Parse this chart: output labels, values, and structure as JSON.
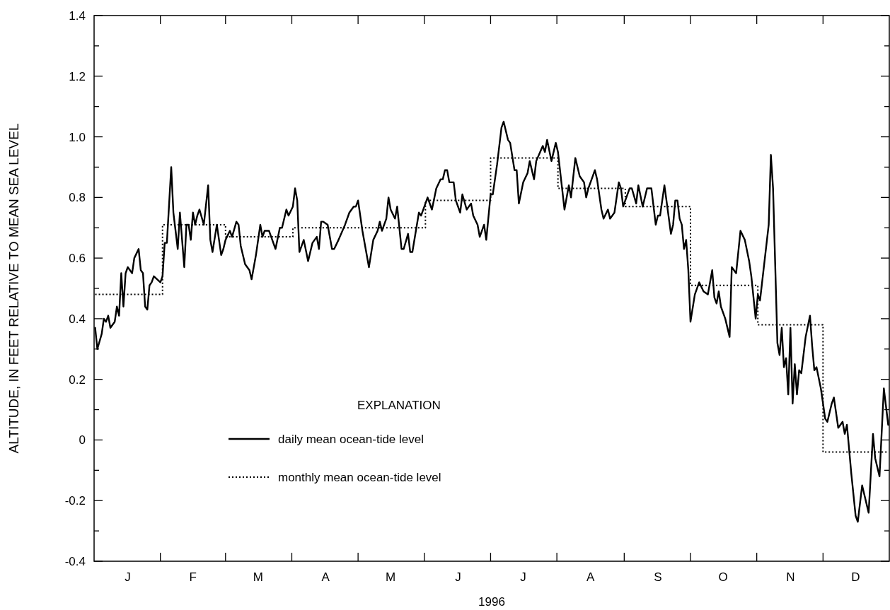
{
  "chart_data": {
    "type": "line",
    "xlabel": "1996",
    "ylabel": "ALTITUDE, IN FEET RELATIVE TO MEAN SEA LEVEL",
    "legend_title": "EXPLANATION",
    "legend": "bottom left",
    "grid": false,
    "ylim": [
      -0.4,
      1.4
    ],
    "yticks": [
      {
        "value": -0.4,
        "label": "-0.4"
      },
      {
        "value": -0.3,
        "label": null
      },
      {
        "value": -0.2,
        "label": "-0.2"
      },
      {
        "value": -0.1,
        "label": null
      },
      0,
      {
        "value": 0.1,
        "label": null
      },
      0.2,
      {
        "value": 0.3,
        "label": null
      },
      0.4,
      {
        "value": 0.5,
        "label": null
      },
      0.6,
      {
        "value": 0.7,
        "label": null
      },
      0.8,
      {
        "value": 0.9,
        "label": null
      },
      {
        "value": 1.0,
        "label": "1.0"
      },
      {
        "value": 1.1,
        "label": null
      },
      1.2,
      {
        "value": 1.3,
        "label": null
      },
      1.4
    ],
    "categories": [
      null,
      null,
      null,
      null,
      null,
      null,
      null,
      null,
      null,
      null,
      null,
      null,
      null,
      null,
      null,
      "J",
      null,
      null,
      null,
      null,
      null,
      null,
      null,
      null,
      null,
      null,
      null,
      null,
      null,
      null,
      null,
      null,
      null,
      null,
      null,
      null,
      null,
      null,
      null,
      null,
      null,
      null,
      null,
      null,
      null,
      "F",
      null,
      null,
      null,
      null,
      null,
      null,
      null,
      null,
      null,
      null,
      null,
      null,
      null,
      null,
      null,
      null,
      null,
      null,
      null,
      null,
      null,
      null,
      null,
      null,
      null,
      null,
      null,
      null,
      null,
      "M",
      null,
      null,
      null,
      null,
      null,
      null,
      null,
      null,
      null,
      null,
      null,
      null,
      null,
      null,
      null,
      null,
      null,
      null,
      null,
      null,
      null,
      null,
      null,
      null,
      null,
      null,
      null,
      null,
      null,
      null,
      "A",
      null,
      null,
      null,
      null,
      null,
      null,
      null,
      null,
      null,
      null,
      null,
      null,
      null,
      null,
      null,
      null,
      null,
      null,
      null,
      null,
      null,
      null,
      null,
      null,
      null,
      null,
      null,
      null,
      null,
      "M",
      null,
      null,
      null,
      null,
      null,
      null,
      null,
      null,
      null,
      null,
      null,
      null,
      null,
      null,
      null,
      null,
      null,
      null,
      null,
      null,
      null,
      null,
      null,
      null,
      null,
      null,
      null,
      null,
      null,
      null,
      "J",
      null,
      null,
      null,
      null,
      null,
      null,
      null,
      null,
      null,
      null,
      null,
      null,
      null,
      null,
      null,
      null,
      null,
      null,
      null,
      null,
      null,
      null,
      null,
      null,
      null,
      null,
      null,
      null,
      null,
      "J",
      null,
      null,
      null,
      null,
      null,
      null,
      null,
      null,
      null,
      null,
      null,
      null,
      null,
      null,
      null,
      null,
      null,
      null,
      null,
      null,
      null,
      null,
      null,
      null,
      null,
      null,
      null,
      null,
      null,
      null,
      "A",
      null,
      null,
      null,
      null,
      null,
      null,
      null,
      null,
      null,
      null,
      null,
      null,
      null,
      null,
      null,
      null,
      null,
      null,
      null,
      null,
      null,
      null,
      null,
      null,
      null,
      null,
      null,
      null,
      null,
      null,
      "S",
      null,
      null,
      null,
      null,
      null,
      null,
      null,
      null,
      null,
      null,
      null,
      null,
      null,
      null,
      null,
      null,
      null,
      null,
      null,
      null,
      null,
      null,
      null,
      null,
      null,
      null,
      null,
      null,
      null,
      "O",
      null,
      null,
      null,
      null,
      null,
      null,
      null,
      null,
      null,
      null,
      null,
      null,
      null,
      null,
      null,
      null,
      null,
      null,
      null,
      null,
      null,
      null,
      null,
      null,
      null,
      null,
      null,
      null,
      null,
      null,
      "N",
      null,
      null,
      null,
      null,
      null,
      null,
      null,
      null,
      null,
      null,
      null,
      null,
      null,
      null,
      null,
      null,
      null,
      null,
      null,
      null,
      null,
      null,
      null,
      null,
      null,
      null,
      null,
      null,
      null,
      "D",
      null,
      null,
      null,
      null,
      null,
      null,
      null,
      null,
      null,
      null,
      null,
      null,
      null,
      null,
      null
    ],
    "series": [
      {
        "name": "daily mean ocean-tide level",
        "color": "#000000",
        "line_style": "solid",
        "values": [
          0.37,
          0.3,
          null,
          0.35,
          0.4,
          0.39,
          0.41,
          0.37,
          null,
          0.39,
          0.44,
          0.41,
          0.55,
          0.44,
          0.55,
          0.57,
          null,
          0.55,
          0.6,
          null,
          0.63,
          0.56,
          0.55,
          0.44,
          0.43,
          0.51,
          0.52,
          0.54,
          null,
          null,
          0.52,
          0.54,
          0.65,
          0.65,
          null,
          0.9,
          0.75,
          null,
          0.63,
          0.75,
          null,
          0.57,
          0.71,
          0.71,
          0.66,
          0.75,
          0.71,
          0.74,
          0.76,
          null,
          0.71,
          null,
          0.84,
          0.66,
          0.62,
          null,
          0.71,
          null,
          0.61,
          0.63,
          0.66,
          null,
          0.69,
          0.67,
          null,
          0.72,
          0.71,
          0.64,
          null,
          0.58,
          null,
          0.56,
          0.53,
          null,
          0.61,
          null,
          0.71,
          0.67,
          0.69,
          null,
          0.69,
          0.67,
          null,
          0.63,
          null,
          0.7,
          0.7,
          null,
          0.76,
          0.74,
          null,
          0.77,
          0.83,
          0.79,
          0.62,
          null,
          0.66,
          null,
          0.59,
          null,
          0.65,
          null,
          0.67,
          0.63,
          0.72,
          0.72,
          null,
          0.71,
          null,
          0.63,
          0.63,
          null,
          0.66,
          null,
          null,
          0.71,
          null,
          0.75,
          null,
          0.77,
          0.77,
          0.79,
          null,
          0.69,
          0.65,
          null,
          0.57,
          null,
          0.66,
          null,
          0.69,
          0.72,
          0.69,
          null,
          0.73,
          0.8,
          0.76,
          null,
          0.73,
          0.77,
          null,
          0.63,
          0.63,
          null,
          0.68,
          0.62,
          0.62,
          null,
          null,
          0.75,
          0.74,
          null,
          null,
          0.8,
          null,
          0.76,
          null,
          0.83,
          null,
          0.86,
          0.86,
          0.89,
          0.89,
          0.85,
          null,
          0.85,
          0.79,
          null,
          0.75,
          0.81,
          null,
          0.76,
          null,
          0.78,
          0.74,
          null,
          0.71,
          0.67,
          null,
          0.71,
          0.66,
          null,
          0.81,
          0.81,
          null,
          0.91,
          null,
          1.03,
          1.05,
          null,
          0.99,
          0.98,
          null,
          0.89,
          0.89,
          0.78,
          null,
          0.85,
          null,
          0.88,
          0.92,
          null,
          0.86,
          0.92,
          null,
          null,
          0.97,
          0.95,
          0.99,
          null,
          0.92,
          null,
          0.98,
          0.95,
          null,
          null,
          0.76,
          null,
          0.84,
          0.8,
          null,
          0.93,
          null,
          0.87,
          null,
          0.85,
          0.8,
          0.83,
          null,
          0.87,
          0.89,
          0.86,
          null,
          0.76,
          0.73,
          null,
          0.76,
          0.73,
          null,
          0.75,
          null,
          0.85,
          0.83,
          0.77,
          null,
          null,
          0.83,
          0.83,
          null,
          0.78,
          0.84,
          null,
          0.77,
          null,
          0.83,
          null,
          0.83,
          null,
          0.71,
          0.74,
          0.74,
          null,
          0.84,
          null,
          null,
          0.68,
          0.71,
          0.79,
          0.79,
          0.73,
          0.71,
          0.63,
          0.66,
          0.56,
          0.39,
          null,
          0.48,
          null,
          0.52,
          null,
          0.49,
          null,
          0.48,
          null,
          0.56,
          0.47,
          0.45,
          0.49,
          0.44,
          null,
          0.4,
          null,
          0.34,
          0.57,
          null,
          0.55,
          null,
          0.69,
          null,
          0.66,
          null,
          0.59,
          0.54,
          null,
          0.4,
          0.48,
          0.46,
          null,
          null,
          null,
          0.71,
          0.94,
          0.83,
          null,
          0.32,
          0.28,
          0.37,
          0.24,
          0.27,
          0.15,
          0.37,
          0.12,
          0.25,
          0.15,
          0.23,
          0.22,
          null,
          0.34,
          null,
          0.41,
          0.31,
          0.23,
          0.24,
          null,
          0.17,
          null,
          0.07,
          0.06,
          null,
          0.12,
          0.14,
          null,
          0.04,
          null,
          0.06,
          0.02,
          0.05,
          null,
          -0.11,
          null,
          -0.25,
          -0.27,
          null,
          -0.15,
          null,
          null,
          -0.24,
          null,
          0.02,
          -0.06,
          null,
          -0.12,
          null,
          0.17,
          null,
          0.05
        ]
      },
      {
        "name": "monthly mean ocean-tide level",
        "color": "#000000",
        "type": "step",
        "line_style": "dotted",
        "values": [
          0.48,
          null,
          null,
          null,
          null,
          null,
          null,
          null,
          null,
          null,
          null,
          null,
          null,
          null,
          null,
          null,
          null,
          null,
          null,
          null,
          null,
          null,
          null,
          null,
          null,
          null,
          null,
          null,
          null,
          null,
          null,
          0.71,
          null,
          null,
          null,
          null,
          null,
          null,
          null,
          null,
          null,
          null,
          null,
          null,
          null,
          null,
          null,
          null,
          null,
          null,
          null,
          null,
          null,
          null,
          null,
          null,
          null,
          null,
          null,
          null,
          0.67,
          null,
          null,
          null,
          null,
          null,
          null,
          null,
          null,
          null,
          null,
          null,
          null,
          null,
          null,
          null,
          null,
          null,
          null,
          null,
          null,
          null,
          null,
          null,
          null,
          null,
          null,
          null,
          null,
          null,
          null,
          0.7,
          null,
          null,
          null,
          null,
          null,
          null,
          null,
          null,
          null,
          null,
          null,
          null,
          null,
          null,
          null,
          null,
          null,
          null,
          null,
          null,
          null,
          null,
          null,
          null,
          null,
          null,
          null,
          null,
          null,
          0.7,
          null,
          null,
          null,
          null,
          null,
          null,
          null,
          null,
          null,
          null,
          null,
          null,
          null,
          null,
          null,
          null,
          null,
          null,
          null,
          null,
          null,
          null,
          null,
          null,
          null,
          null,
          null,
          null,
          null,
          null,
          0.79,
          null,
          null,
          null,
          null,
          null,
          null,
          null,
          null,
          null,
          null,
          null,
          null,
          null,
          null,
          null,
          null,
          null,
          null,
          null,
          null,
          null,
          null,
          null,
          null,
          null,
          null,
          null,
          null,
          null,
          0.93,
          null,
          null,
          null,
          null,
          null,
          null,
          null,
          null,
          null,
          null,
          null,
          null,
          null,
          null,
          null,
          null,
          null,
          null,
          null,
          null,
          null,
          null,
          null,
          null,
          null,
          null,
          null,
          null,
          null,
          null,
          0.83,
          null,
          null,
          null,
          null,
          null,
          null,
          null,
          null,
          null,
          null,
          null,
          null,
          null,
          null,
          null,
          null,
          null,
          null,
          null,
          null,
          null,
          null,
          null,
          null,
          null,
          null,
          null,
          null,
          null,
          null,
          0.77,
          null,
          null,
          null,
          null,
          null,
          null,
          null,
          null,
          null,
          null,
          null,
          null,
          null,
          null,
          null,
          null,
          null,
          null,
          null,
          null,
          null,
          null,
          null,
          null,
          null,
          null,
          null,
          null,
          null,
          0.51,
          null,
          null,
          null,
          null,
          null,
          null,
          null,
          null,
          null,
          null,
          null,
          null,
          null,
          null,
          null,
          null,
          null,
          null,
          null,
          null,
          null,
          null,
          null,
          null,
          null,
          null,
          null,
          null,
          null,
          null,
          0.38,
          null,
          null,
          null,
          null,
          null,
          null,
          null,
          null,
          null,
          null,
          null,
          null,
          null,
          null,
          null,
          null,
          null,
          null,
          null,
          null,
          null,
          null,
          null,
          null,
          null,
          null,
          null,
          null,
          null,
          -0.04,
          null,
          null,
          null,
          null,
          null,
          null,
          null,
          null,
          null,
          null,
          null,
          null,
          null,
          null,
          null,
          null,
          null,
          null,
          null,
          null,
          null,
          null,
          null,
          null,
          null,
          null,
          null,
          null,
          null,
          -0.04
        ]
      }
    ]
  }
}
